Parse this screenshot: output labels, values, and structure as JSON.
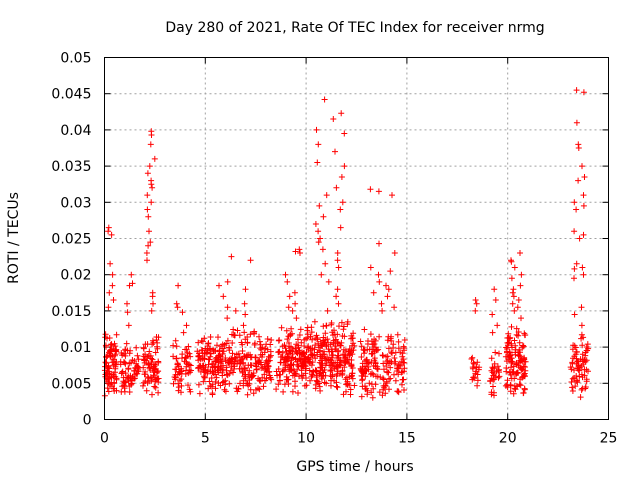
{
  "chart_data": {
    "type": "scatter",
    "title": "Day 280 of 2021, Rate Of TEC Index for receiver nrmg",
    "xlabel": "GPS time / hours",
    "ylabel": "ROTI / TECUs",
    "xlim": [
      0,
      25
    ],
    "ylim": [
      0,
      0.05
    ],
    "x_ticks": [
      0,
      5,
      10,
      15,
      20,
      25
    ],
    "x_tick_labels": [
      "0",
      "5",
      "10",
      "15",
      "20",
      "25"
    ],
    "y_ticks": [
      0,
      0.005,
      0.01,
      0.015,
      0.02,
      0.025,
      0.03,
      0.035,
      0.04,
      0.045,
      0.05
    ],
    "y_tick_labels": [
      "0",
      "0.005",
      "0.01",
      "0.015",
      "0.02",
      "0.025",
      "0.03",
      "0.035",
      "0.04",
      "0.045",
      "0.05"
    ],
    "grid": true,
    "marker": "+",
    "color": "#ff0000",
    "clusters": [
      {
        "x_range": [
          0.0,
          0.6
        ],
        "y_range": [
          0.003,
          0.012
        ],
        "n": 90,
        "peaks": [
          0.0265,
          0.026,
          0.0255,
          0.0215,
          0.02,
          0.0185,
          0.0175,
          0.0165,
          0.0155
        ]
      },
      {
        "x_range": [
          0.8,
          1.7
        ],
        "y_range": [
          0.0035,
          0.011
        ],
        "n": 70,
        "peaks": [
          0.02,
          0.0188,
          0.0185,
          0.016,
          0.0148,
          0.013
        ]
      },
      {
        "x_range": [
          1.9,
          2.7
        ],
        "y_range": [
          0.003,
          0.012
        ],
        "n": 80,
        "peaks": [
          0.0398,
          0.0393,
          0.038,
          0.036,
          0.035,
          0.034,
          0.033,
          0.0325,
          0.032,
          0.031,
          0.03,
          0.029,
          0.028,
          0.026,
          0.0245,
          0.024,
          0.023,
          0.022,
          0.0175,
          0.017,
          0.016,
          0.015
        ]
      },
      {
        "x_range": [
          3.4,
          4.3
        ],
        "y_range": [
          0.003,
          0.011
        ],
        "n": 60,
        "peaks": [
          0.0185,
          0.016,
          0.0155,
          0.0148,
          0.013,
          0.012
        ]
      },
      {
        "x_range": [
          4.6,
          8.3
        ],
        "y_range": [
          0.003,
          0.013
        ],
        "n": 320,
        "peaks": [
          0.0225,
          0.022,
          0.019,
          0.0185,
          0.018,
          0.017,
          0.016,
          0.0155,
          0.015,
          0.0145,
          0.014,
          0.013
        ]
      },
      {
        "x_range": [
          8.5,
          10.0
        ],
        "y_range": [
          0.003,
          0.013
        ],
        "n": 150,
        "peaks": [
          0.0235,
          0.0232,
          0.023,
          0.02,
          0.019,
          0.0175,
          0.017,
          0.016,
          0.0155,
          0.015,
          0.014
        ]
      },
      {
        "x_range": [
          10.0,
          12.4
        ],
        "y_range": [
          0.003,
          0.014
        ],
        "n": 260,
        "peaks": [
          0.0442,
          0.0423,
          0.0415,
          0.04,
          0.0395,
          0.038,
          0.037,
          0.0355,
          0.035,
          0.0335,
          0.032,
          0.031,
          0.03,
          0.0295,
          0.029,
          0.028,
          0.027,
          0.0265,
          0.026,
          0.025,
          0.0245,
          0.0235,
          0.023,
          0.022,
          0.0215,
          0.021,
          0.02,
          0.019,
          0.018,
          0.017,
          0.016,
          0.015
        ]
      },
      {
        "x_range": [
          12.7,
          14.9
        ],
        "y_range": [
          0.002,
          0.013
        ],
        "n": 170,
        "peaks": [
          0.0318,
          0.0315,
          0.031,
          0.0243,
          0.023,
          0.021,
          0.0205,
          0.02,
          0.019,
          0.0185,
          0.018,
          0.0175,
          0.017,
          0.016,
          0.0155,
          0.015
        ]
      },
      {
        "x_range": [
          18.2,
          18.6
        ],
        "y_range": [
          0.004,
          0.009
        ],
        "n": 20,
        "peaks": [
          0.0165,
          0.016,
          0.015
        ]
      },
      {
        "x_range": [
          19.1,
          19.6
        ],
        "y_range": [
          0.002,
          0.01
        ],
        "n": 30,
        "peaks": [
          0.018,
          0.0165,
          0.0145,
          0.013,
          0.012
        ]
      },
      {
        "x_range": [
          19.9,
          20.9
        ],
        "y_range": [
          0.003,
          0.013
        ],
        "n": 120,
        "peaks": [
          0.023,
          0.022,
          0.0218,
          0.021,
          0.02,
          0.0195,
          0.0185,
          0.018,
          0.0175,
          0.017,
          0.0165,
          0.016,
          0.0155,
          0.015,
          0.014
        ]
      },
      {
        "x_range": [
          23.1,
          24.0
        ],
        "y_range": [
          0.003,
          0.012
        ],
        "n": 70,
        "peaks": [
          0.0455,
          0.0452,
          0.041,
          0.038,
          0.0375,
          0.035,
          0.0335,
          0.033,
          0.031,
          0.03,
          0.0295,
          0.029,
          0.026,
          0.0255,
          0.025,
          0.0215,
          0.021,
          0.0208,
          0.02,
          0.0195,
          0.0155,
          0.0145,
          0.013
        ]
      }
    ]
  }
}
